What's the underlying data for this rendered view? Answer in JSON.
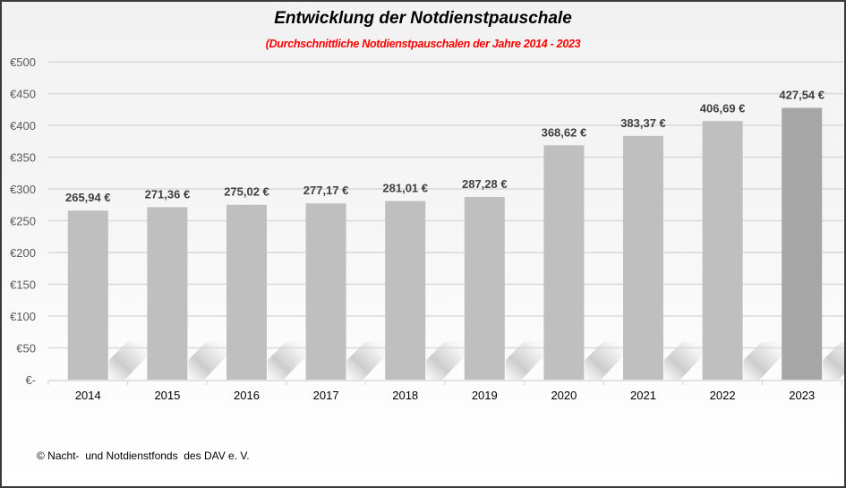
{
  "chart_data": {
    "type": "bar",
    "title": "Entwicklung der Notdienstpauschale",
    "subtitle": "(Durchschnittliche Notdienstpauschalen der Jahre 2014 - 2023",
    "xlabel": "",
    "ylabel": "",
    "categories": [
      "2014",
      "2015",
      "2016",
      "2017",
      "2018",
      "2019",
      "2020",
      "2021",
      "2022",
      "2023"
    ],
    "values": [
      265.94,
      271.36,
      275.02,
      277.17,
      281.01,
      287.28,
      368.62,
      383.37,
      406.69,
      427.54
    ],
    "data_labels": [
      "265,94 €",
      "271,36 €",
      "275,02 €",
      "277,17 €",
      "281,01 €",
      "287,28 €",
      "368,62 €",
      "383,37 €",
      "406,69 €",
      "427,54 €"
    ],
    "ylim": [
      0,
      500
    ],
    "yticks": [
      0,
      50,
      100,
      150,
      200,
      250,
      300,
      350,
      400,
      450,
      500
    ],
    "ytick_labels": [
      "€-",
      "€50",
      "€100",
      "€150",
      "€200",
      "€250",
      "€300",
      "€350",
      "€400",
      "€450",
      "€500"
    ],
    "grid": true,
    "legend": "none",
    "colors": {
      "bar": "#bfbfbf",
      "bar_highlight": "#a6a6a6",
      "subtitle": "#ff0000",
      "gridline": "#d9d9d9"
    },
    "highlight_index": 9
  },
  "footer": "© Nacht-  und Notdienstfonds  des DAV e. V."
}
